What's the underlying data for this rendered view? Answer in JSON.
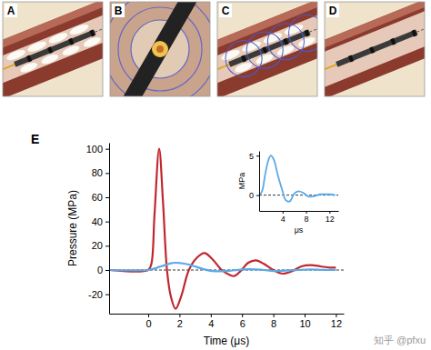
{
  "panel_labels": [
    "A",
    "B",
    "C",
    "D",
    "E"
  ],
  "watermark": "知乎 @pfxu",
  "chart_data": [
    {
      "type": "line",
      "x_label": "Time (μs)",
      "y_label": "Pressure (MPa)",
      "xlim": [
        -2.5,
        12.5
      ],
      "ylim": [
        -36,
        105
      ],
      "xticks": [
        0,
        2,
        4,
        6,
        8,
        10,
        12
      ],
      "yticks": [
        -20,
        0,
        20,
        40,
        60,
        80,
        100
      ],
      "x": [
        -2.5,
        0,
        0.2,
        0.4,
        0.7,
        0.95,
        1.2,
        1.45,
        1.75,
        2.1,
        2.6,
        3.1,
        3.6,
        4.1,
        4.7,
        5.2,
        5.5,
        5.9,
        6.4,
        6.9,
        7.4,
        8,
        8.6,
        9.2,
        9.8,
        10.4,
        11,
        11.6,
        12
      ],
      "series": [
        {
          "color": "#c0282d",
          "values": [
            0,
            0,
            5,
            45,
            100,
            55,
            0,
            -22,
            -32,
            -22,
            0,
            10,
            14,
            9,
            0,
            -4,
            -5,
            -1,
            6,
            8,
            5,
            0,
            -3,
            -1,
            3,
            4,
            3,
            2,
            2
          ]
        },
        {
          "color": "#5aa9e6",
          "values": [
            0,
            0,
            0.5,
            1.2,
            2.5,
            3.5,
            4.5,
            5.5,
            6,
            5.6,
            4.5,
            2.5,
            0.5,
            -0.8,
            -1,
            -0.6,
            -0.2,
            0.3,
            0.6,
            0.4,
            0,
            -0.8,
            -0.6,
            -0.2,
            0.2,
            0.4,
            0.2,
            0,
            0
          ]
        }
      ]
    },
    {
      "type": "line",
      "x_label": "μs",
      "y_label": "MPa",
      "xlim": [
        0,
        13.5
      ],
      "ylim": [
        -2,
        5.6
      ],
      "xticks": [
        4,
        8,
        12
      ],
      "yticks": [
        0,
        5
      ],
      "x": [
        0,
        0.5,
        1,
        1.6,
        2,
        2.5,
        3.2,
        4,
        4.5,
        5.2,
        6,
        6.7,
        7.5,
        8.5,
        9.5,
        10.5,
        12,
        13
      ],
      "series": [
        {
          "color": "#5aa9e6",
          "values": [
            0,
            0.5,
            2.5,
            4.5,
            5,
            4.5,
            2.5,
            0.5,
            -0.6,
            -0.8,
            0.2,
            0.5,
            0.3,
            -0.2,
            -0.1,
            0.1,
            0.1,
            0
          ]
        }
      ]
    }
  ]
}
